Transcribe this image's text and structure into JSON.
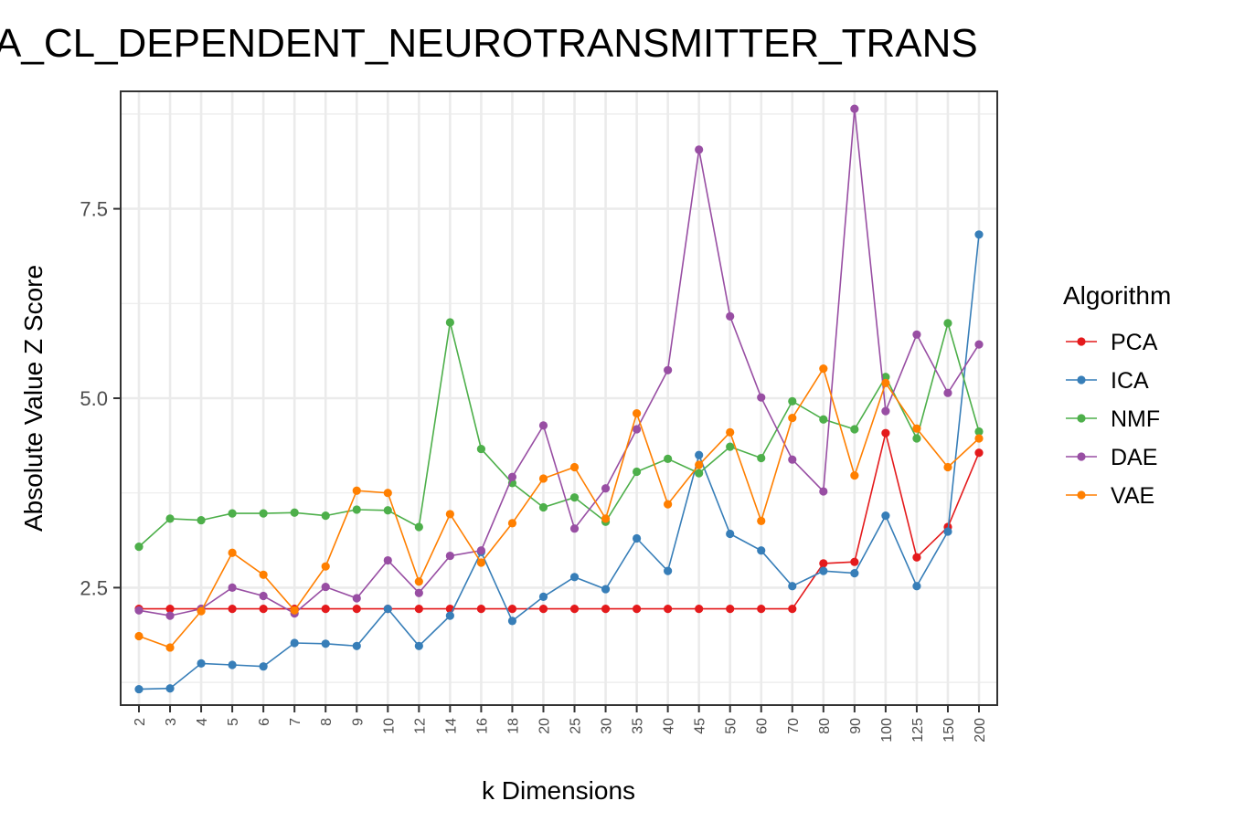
{
  "chart_data": {
    "type": "line",
    "title": "A_CL_DEPENDENT_NEUROTRANSMITTER_TRANS",
    "xlabel": "k Dimensions",
    "ylabel": "Absolute Value Z Score",
    "categories": [
      "2",
      "3",
      "4",
      "5",
      "6",
      "7",
      "8",
      "9",
      "10",
      "12",
      "14",
      "16",
      "18",
      "20",
      "25",
      "30",
      "35",
      "40",
      "45",
      "50",
      "60",
      "70",
      "80",
      "90",
      "100",
      "125",
      "150",
      "200"
    ],
    "ylim": [
      0.95,
      9.05
    ],
    "yticks": [
      2.5,
      5.0,
      7.5
    ],
    "ytick_labels": [
      "2.5",
      "5.0",
      "7.5"
    ],
    "grid": true,
    "legend_title": "Algorithm",
    "legend_position": "right",
    "series": [
      {
        "name": "PCA",
        "color": "#E41A1C",
        "values": [
          2.22,
          2.22,
          2.22,
          2.22,
          2.22,
          2.22,
          2.22,
          2.22,
          2.22,
          2.22,
          2.22,
          2.22,
          2.22,
          2.22,
          2.22,
          2.22,
          2.22,
          2.22,
          2.22,
          2.22,
          2.22,
          2.22,
          2.82,
          2.84,
          4.54,
          2.9,
          3.3,
          4.28
        ]
      },
      {
        "name": "ICA",
        "color": "#377EB8",
        "values": [
          1.16,
          1.17,
          1.5,
          1.48,
          1.46,
          1.77,
          1.76,
          1.73,
          2.22,
          1.73,
          2.13,
          2.97,
          2.06,
          2.38,
          2.64,
          2.48,
          3.15,
          2.72,
          4.25,
          3.21,
          2.99,
          2.52,
          2.72,
          2.69,
          3.45,
          2.52,
          3.24,
          7.16
        ]
      },
      {
        "name": "NMF",
        "color": "#4DAF4A",
        "values": [
          3.04,
          3.41,
          3.39,
          3.48,
          3.48,
          3.49,
          3.45,
          3.53,
          3.52,
          3.3,
          6.0,
          4.33,
          3.88,
          3.56,
          3.69,
          3.37,
          4.03,
          4.2,
          4.01,
          4.36,
          4.21,
          4.96,
          4.72,
          4.59,
          5.28,
          4.47,
          5.99,
          4.56
        ]
      },
      {
        "name": "DAE",
        "color": "#984EA3",
        "values": [
          2.2,
          2.13,
          2.22,
          2.5,
          2.39,
          2.16,
          2.51,
          2.36,
          2.86,
          2.43,
          2.92,
          2.99,
          3.96,
          4.64,
          3.28,
          3.81,
          4.59,
          5.37,
          8.28,
          6.08,
          5.01,
          4.19,
          3.77,
          8.82,
          4.83,
          5.84,
          5.07,
          5.71
        ]
      },
      {
        "name": "VAE",
        "color": "#FF7F00",
        "values": [
          1.86,
          1.71,
          2.19,
          2.96,
          2.67,
          2.2,
          2.78,
          3.78,
          3.75,
          2.58,
          3.47,
          2.83,
          3.35,
          3.94,
          4.09,
          3.41,
          4.8,
          3.6,
          4.12,
          4.55,
          3.38,
          4.74,
          5.39,
          3.98,
          5.2,
          4.6,
          4.09,
          4.47
        ]
      }
    ]
  }
}
